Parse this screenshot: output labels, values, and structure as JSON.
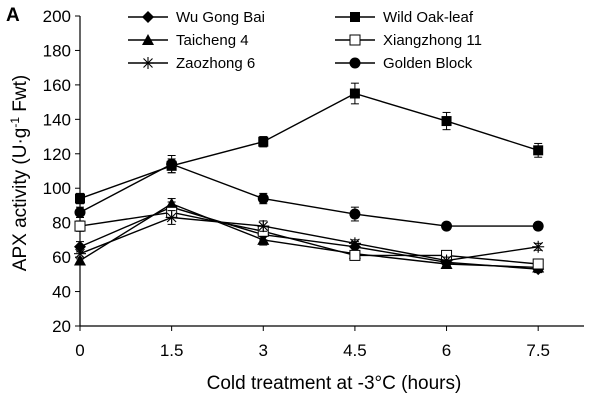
{
  "chart_data": {
    "type": "line",
    "panel_label": "A",
    "xlabel": "Cold treatment at -3°C (hours)",
    "ylabel_parts": [
      "APX activity (U·g",
      "-1",
      " Fwt)"
    ],
    "x": [
      0,
      1.5,
      3,
      4.5,
      6,
      7.5
    ],
    "x_tick_labels": [
      "0",
      "1.5",
      "3",
      "4.5",
      "6",
      "7.5"
    ],
    "ylim": [
      20,
      200
    ],
    "y_ticks": [
      20,
      40,
      60,
      80,
      100,
      120,
      140,
      160,
      180,
      200
    ],
    "series": [
      {
        "name": "Wu Gong Bai",
        "marker": "diamond",
        "values": [
          66,
          89,
          73,
          66,
          57,
          53
        ],
        "errors": [
          3,
          3,
          3,
          3,
          2,
          2
        ]
      },
      {
        "name": "Wild Oak-leaf",
        "marker": "square-filled",
        "values": [
          94,
          113,
          127,
          155,
          139,
          122
        ],
        "errors": [
          3,
          4,
          3,
          6,
          5,
          4
        ]
      },
      {
        "name": "Taicheng 4",
        "marker": "triangle",
        "values": [
          58,
          91,
          70,
          62,
          56,
          54
        ],
        "errors": [
          2,
          3,
          3,
          2,
          2,
          2
        ]
      },
      {
        "name": "Xiangzhong 11",
        "marker": "square-open",
        "values": [
          78,
          86,
          75,
          61,
          61,
          56
        ],
        "errors": [
          3,
          3,
          3,
          2,
          2,
          2
        ]
      },
      {
        "name": "Zaozhong 6",
        "marker": "asterisk",
        "values": [
          62,
          83,
          78,
          68,
          58,
          66
        ],
        "errors": [
          3,
          4,
          3,
          2,
          2,
          2
        ]
      },
      {
        "name": "Golden Block",
        "marker": "circle",
        "values": [
          86,
          114,
          94,
          85,
          78,
          78
        ],
        "errors": [
          3,
          5,
          3,
          4,
          2,
          2
        ]
      }
    ]
  }
}
